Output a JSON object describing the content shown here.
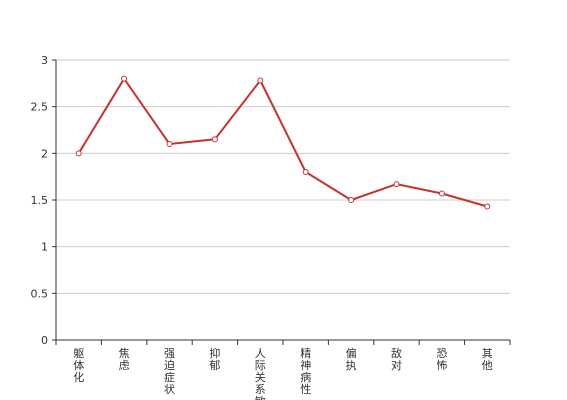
{
  "chart_data": {
    "type": "line",
    "categories": [
      "躯体化",
      "焦虑",
      "强迫症状",
      "抑郁",
      "人际关系敏感",
      "精神病性",
      "偏执",
      "敌对",
      "恐怖",
      "其他"
    ],
    "series": [
      {
        "values": [
          2.0,
          2.8,
          2.1,
          2.15,
          2.78,
          1.8,
          1.5,
          1.67,
          1.57,
          1.43
        ]
      }
    ],
    "ylim": [
      0,
      3
    ],
    "yticks": [
      "0",
      "0.5",
      "1",
      "1.5",
      "2",
      "2.5",
      "3"
    ],
    "grid": true,
    "colors": {
      "line": "#c23531",
      "grid": "#cccccc",
      "axis": "#333333"
    }
  }
}
